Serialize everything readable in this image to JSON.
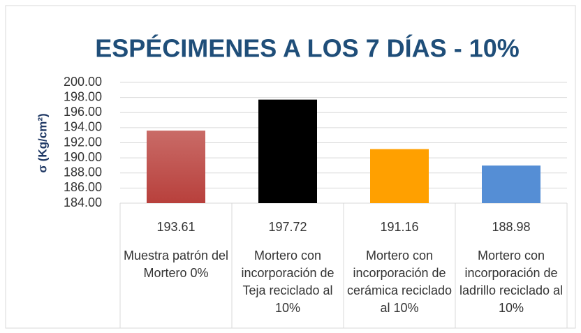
{
  "chart_data": {
    "type": "bar",
    "title": "ESPÉCIMENES A LOS 7 DÍAS - 10%",
    "y_label": "σ (Kg/cm²)",
    "categories": [
      "Muestra patrón del Mortero 0%",
      "Mortero con incorporación de Teja reciclado al 10%",
      "Mortero con incorporación de cerámica reciclado al 10%",
      "Mortero con incorporación de ladrillo reciclado al 10%"
    ],
    "values": [
      193.61,
      197.72,
      191.16,
      188.98
    ],
    "colors": [
      "#c0504d",
      "#000000",
      "#ffa000",
      "#558ed5"
    ],
    "ylim": [
      184,
      200
    ],
    "yticks": [
      {
        "value": 184,
        "label": "184.00"
      },
      {
        "value": 186,
        "label": "186.00"
      },
      {
        "value": 188,
        "label": "188.00"
      },
      {
        "value": 190,
        "label": "190.00"
      },
      {
        "value": 192,
        "label": "192.00"
      },
      {
        "value": 194,
        "label": "194.00"
      },
      {
        "value": 196,
        "label": "196.00"
      },
      {
        "value": 198,
        "label": "198.00"
      },
      {
        "value": 200,
        "label": "200.00"
      }
    ],
    "grid": true
  }
}
